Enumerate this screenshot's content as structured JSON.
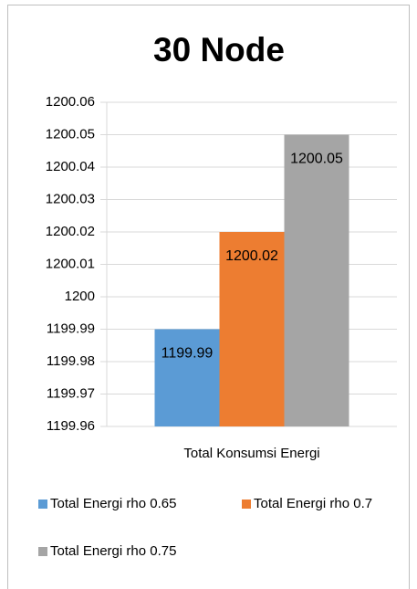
{
  "chart_data": {
    "type": "bar",
    "title": "30 Node",
    "categories": [
      "Total Konsumsi Energi"
    ],
    "series": [
      {
        "name": "Total Energi rho 0.65",
        "color": "#5b9bd5",
        "values": [
          1199.99
        ]
      },
      {
        "name": "Total Energi rho 0.7",
        "color": "#ed7d31",
        "values": [
          1200.02
        ]
      },
      {
        "name": "Total Energi rho 0.75",
        "color": "#a5a5a5",
        "values": [
          1200.05
        ]
      }
    ],
    "ylim": [
      1199.96,
      1200.06
    ],
    "yticks": [
      1199.96,
      1199.97,
      1199.98,
      1199.99,
      1200,
      1200.01,
      1200.02,
      1200.03,
      1200.04,
      1200.05,
      1200.06
    ],
    "grid": true,
    "legend": "bottom",
    "data_labels": true
  }
}
